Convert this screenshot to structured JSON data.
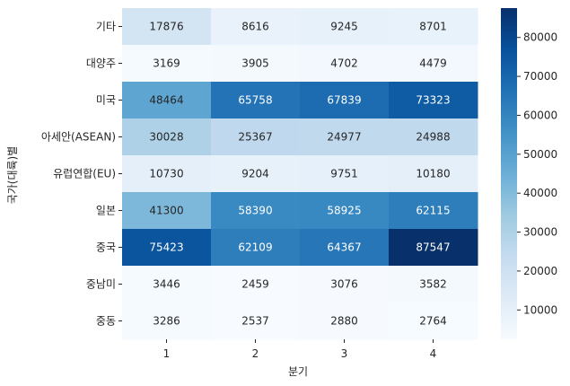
{
  "chart_data": {
    "type": "heatmap",
    "title": "",
    "xlabel": "분기",
    "ylabel": "국가(대륙)별",
    "x_categories": [
      "1",
      "2",
      "3",
      "4"
    ],
    "y_categories": [
      "기타",
      "대양주",
      "미국",
      "아세안(ASEAN)",
      "유럽연합(EU)",
      "일본",
      "중국",
      "중남미",
      "중동"
    ],
    "values": [
      [
        17876,
        8616,
        9245,
        8701
      ],
      [
        3169,
        3905,
        4702,
        4479
      ],
      [
        48464,
        65758,
        67839,
        73323
      ],
      [
        30028,
        25367,
        24977,
        24988
      ],
      [
        10730,
        9204,
        9751,
        10180
      ],
      [
        41300,
        58390,
        58925,
        62115
      ],
      [
        75423,
        62109,
        64367,
        87547
      ],
      [
        3446,
        2459,
        3076,
        3582
      ],
      [
        3286,
        2537,
        2880,
        2764
      ]
    ],
    "colormap": "Blues",
    "vmin": 2459,
    "vmax": 87547,
    "colorbar_ticks": [
      10000,
      20000,
      30000,
      40000,
      50000,
      60000,
      70000,
      80000
    ],
    "colorbar_tick_labels": [
      "10000",
      "20000",
      "30000",
      "40000",
      "50000",
      "60000",
      "70000",
      "80000"
    ],
    "annotations": true
  }
}
